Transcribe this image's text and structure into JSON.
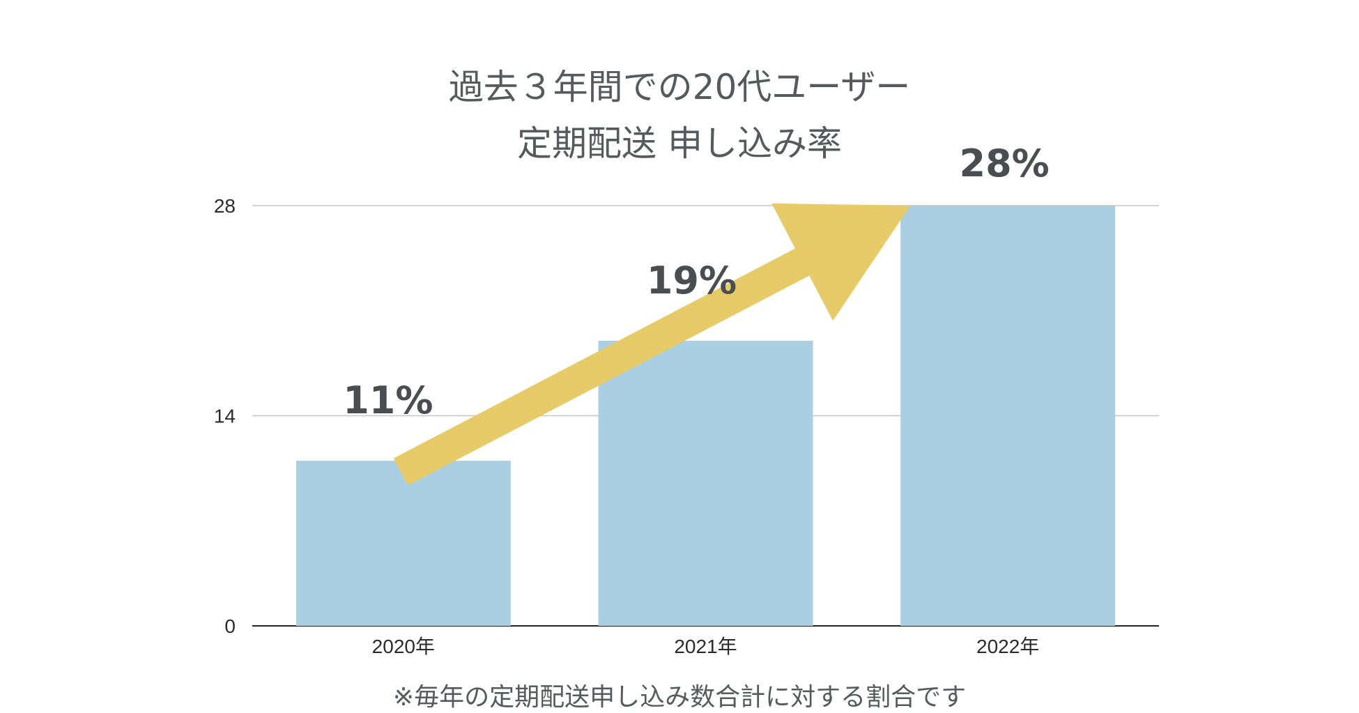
{
  "chart_data": {
    "type": "bar",
    "title": "過去３年間での20代ユーザー",
    "subtitle": "定期配送 申し込み率",
    "categories": [
      "2020年",
      "2021年",
      "2022年"
    ],
    "values": [
      11,
      19,
      28
    ],
    "data_labels": [
      "11%",
      "19%",
      "28%"
    ],
    "ylim": [
      0,
      28
    ],
    "yticks": [
      "0",
      "14",
      "28"
    ],
    "ytick_values": [
      0,
      14,
      28
    ],
    "xlabel": "",
    "ylabel": "",
    "grid": true,
    "legend": "none",
    "bar_color": "#aacfe2",
    "arrow_color": "#e6cb68",
    "annotation": "trend-arrow",
    "footnote": "※毎年の定期配送申し込み数合計に対する割合です"
  }
}
